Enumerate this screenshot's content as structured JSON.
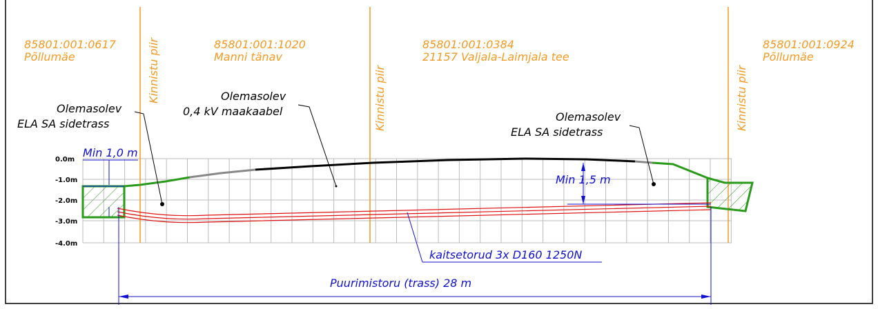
{
  "parcels": [
    {
      "code": "85801:001:0617",
      "name": "Põllumäe"
    },
    {
      "code": "85801:001:1020",
      "name": "Manni tänav"
    },
    {
      "code": "85801:001:0384",
      "name": "21157 Valjala-Laimjala tee"
    },
    {
      "code": "85801:001:0924",
      "name": "Põllumäe"
    }
  ],
  "boundaries": [
    "Kinnistu piir",
    "Kinnistu piir",
    "Kinnistu piir"
  ],
  "callouts": [
    {
      "title": "Olemasolev",
      "label": "ELA SA sidetrass"
    },
    {
      "title": "Olemasolev",
      "label": "0,4 kV maakaabel"
    },
    {
      "title": "Olemasolev",
      "label": "ELA SA sidetrass"
    }
  ],
  "depth_labels": [
    "0.0m",
    "-1.0m",
    "-2.0m",
    "-3.0m",
    "-4.0m"
  ],
  "annotations": {
    "min_cover_left": "Min 1,0 m",
    "min_cover_right": "Min 1,5 m",
    "pipes": "kaitsetorud 3x D160 1250N",
    "drill_length": "Puurimistoru (trass) 28 m"
  }
}
